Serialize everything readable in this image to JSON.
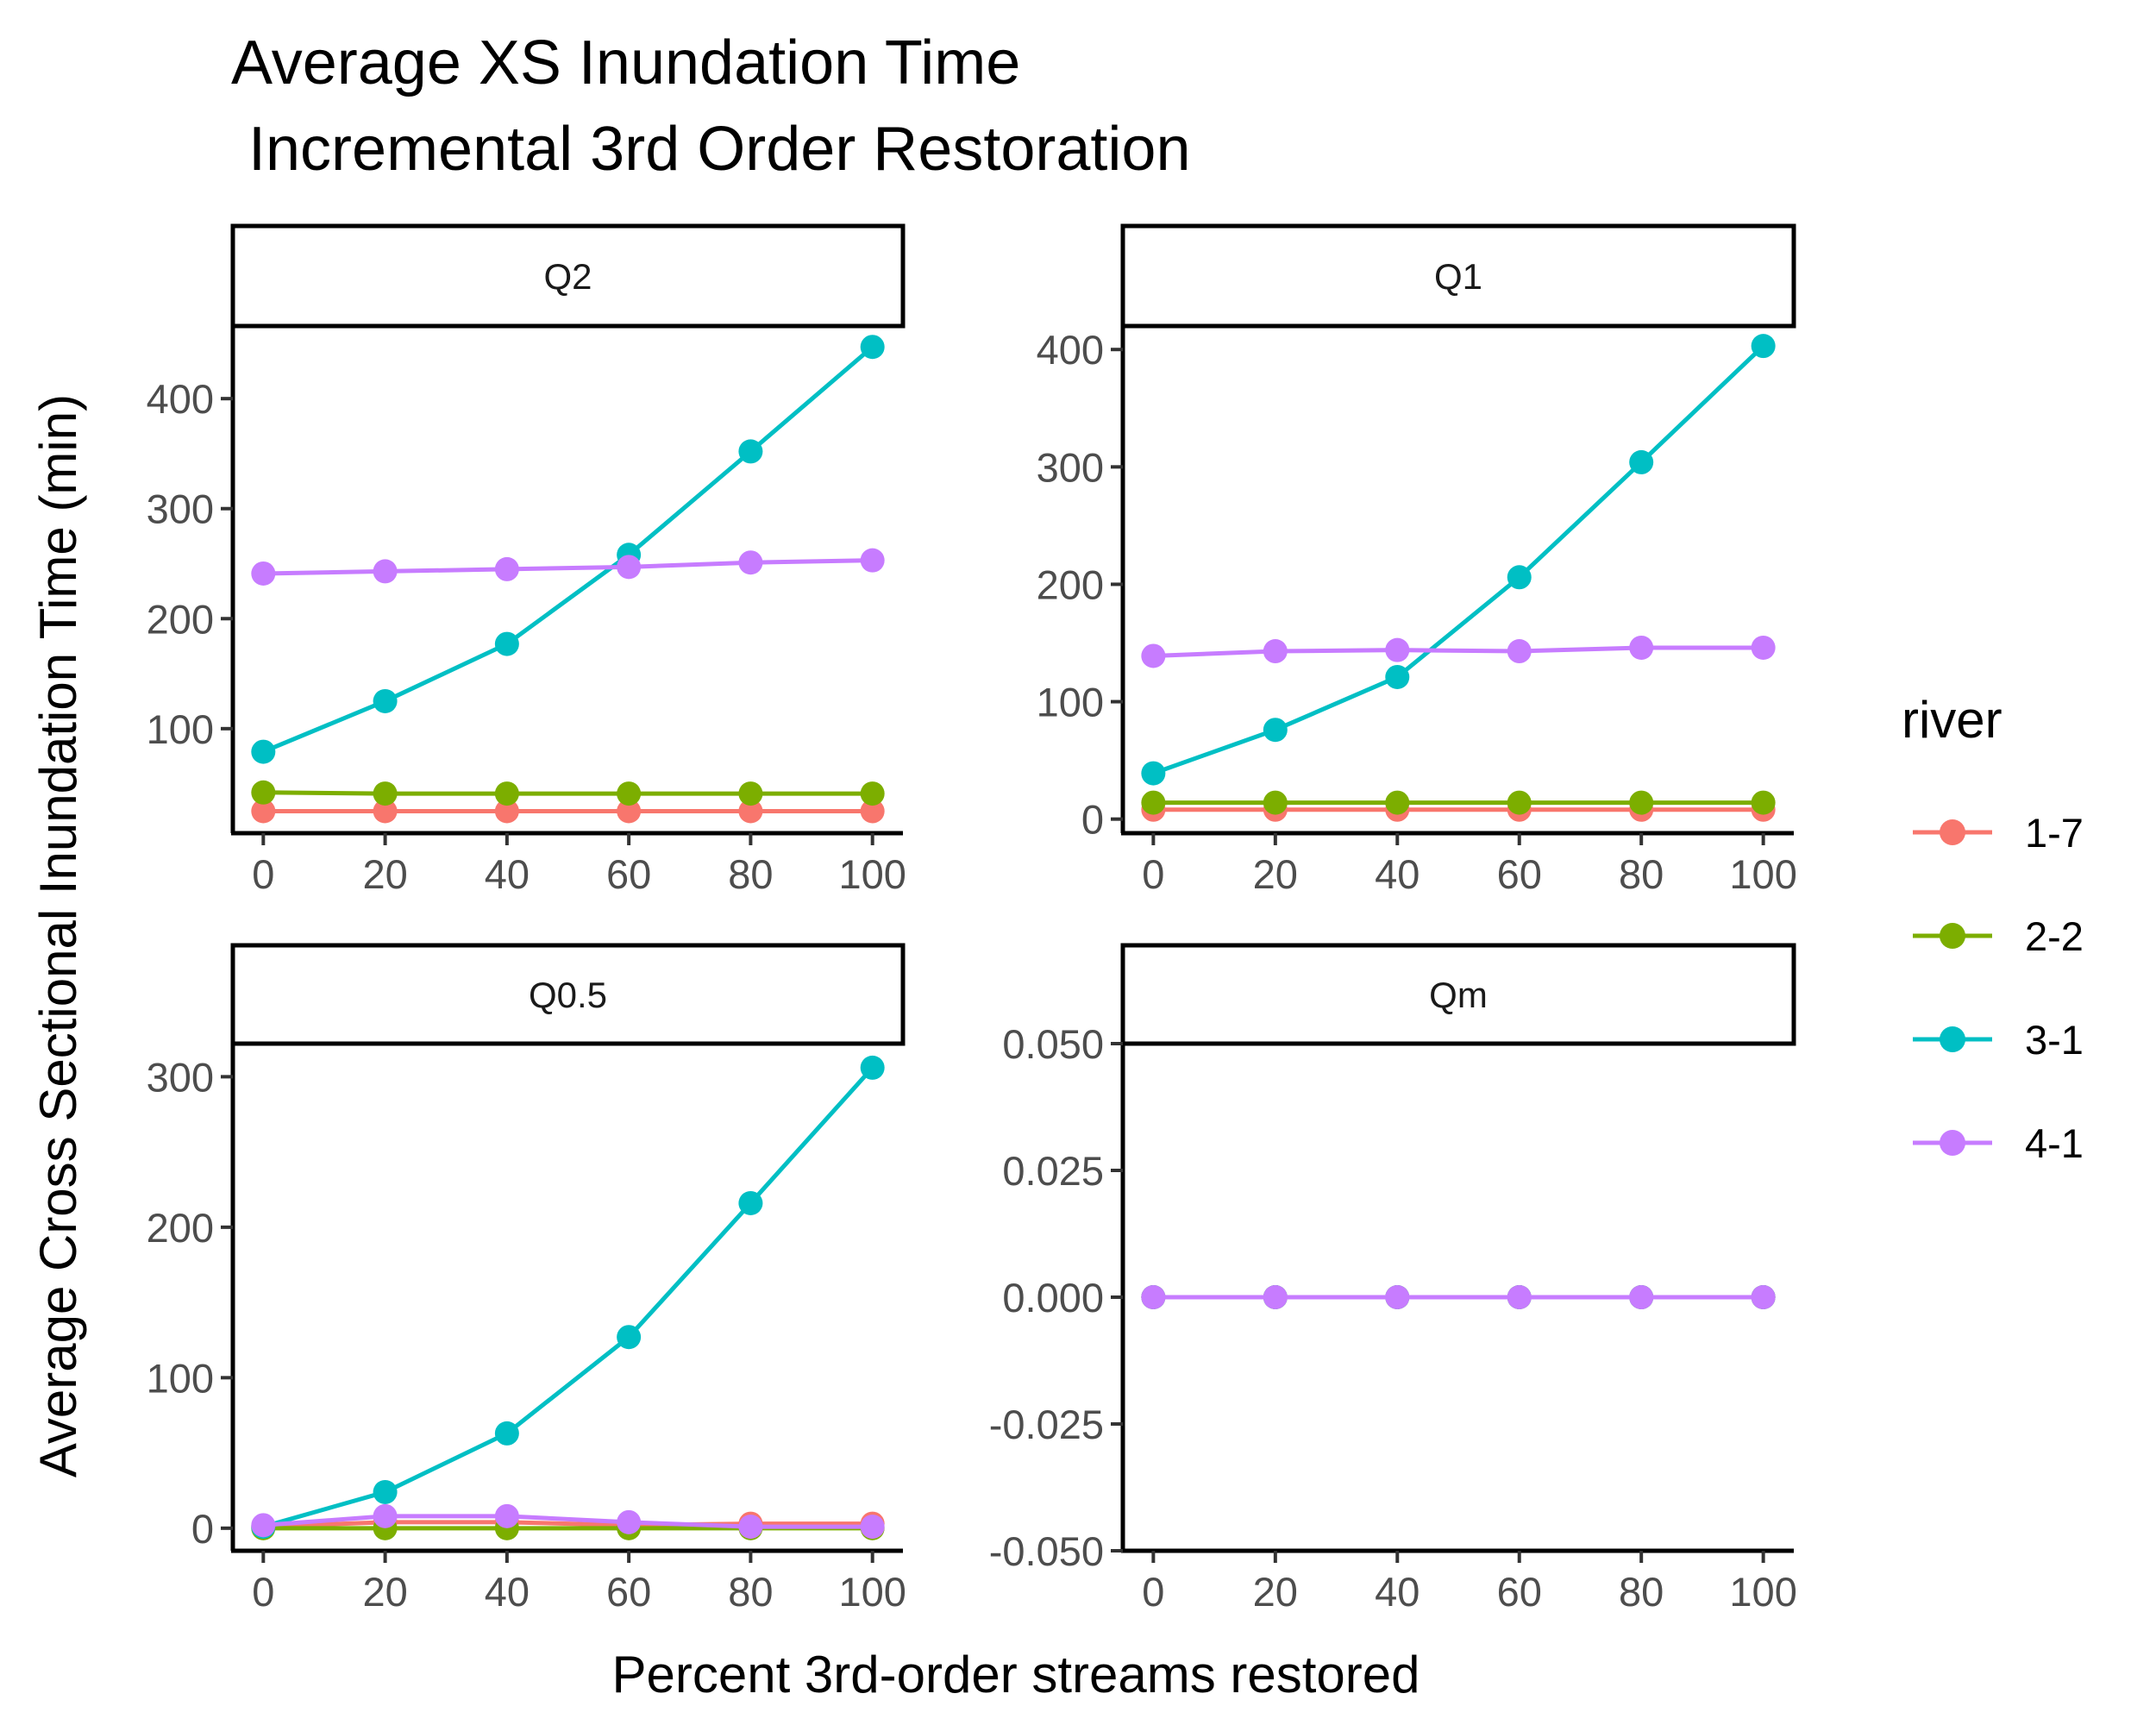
{
  "chart_data": {
    "type": "line",
    "title_line1": "Average XS Inundation Time",
    "title_line2": " Incremental 3rd Order Restoration",
    "xlabel": "Percent 3rd-order streams restored",
    "ylabel": "Average Cross Sectional Inundation Time (min)",
    "legend_title": "river",
    "legend_position": "right",
    "grid": false,
    "colors": {
      "1-7": "#F8766D",
      "2-2": "#7CAE00",
      "3-1": "#00BFC4",
      "4-1": "#C77CFF"
    },
    "x_ticks": [
      "0",
      "20",
      "40",
      "60",
      "80",
      "100"
    ],
    "x": [
      0,
      20,
      40,
      60,
      80,
      100
    ],
    "xlim": [
      -5,
      105
    ],
    "panels": [
      {
        "label": "Q2",
        "ylim": [
          5,
          466
        ],
        "y_ticks": [
          100,
          200,
          300,
          400
        ],
        "y_tick_labels": [
          "100",
          "200",
          "300",
          "400"
        ],
        "series": [
          {
            "name": "1-7",
            "values": [
              25,
              25,
              25,
              25,
              25,
              25
            ]
          },
          {
            "name": "2-2",
            "values": [
              42,
              41,
              41,
              41,
              41,
              41
            ]
          },
          {
            "name": "3-1",
            "values": [
              79,
              125,
              177,
              258,
              352,
              447
            ]
          },
          {
            "name": "4-1",
            "values": [
              241,
              243,
              245,
              247,
              251,
              253
            ]
          }
        ]
      },
      {
        "label": "Q1",
        "ylim": [
          -12,
          420
        ],
        "y_ticks": [
          0,
          100,
          200,
          300,
          400
        ],
        "y_tick_labels": [
          "0",
          "100",
          "200",
          "300",
          "400"
        ],
        "series": [
          {
            "name": "1-7",
            "values": [
              8,
              8,
              8,
              8,
              8,
              8
            ]
          },
          {
            "name": "2-2",
            "values": [
              14,
              14,
              14,
              14,
              14,
              14
            ]
          },
          {
            "name": "3-1",
            "values": [
              39,
              76,
              121,
              206,
              304,
              403
            ]
          },
          {
            "name": "4-1",
            "values": [
              139,
              143,
              144,
              143,
              146,
              146
            ]
          }
        ]
      },
      {
        "label": "Q0.5",
        "ylim": [
          -15,
          322
        ],
        "y_ticks": [
          0,
          100,
          200,
          300
        ],
        "y_tick_labels": [
          "0",
          "100",
          "200",
          "300"
        ],
        "series": [
          {
            "name": "1-7",
            "values": [
              1,
              4,
              4,
              2,
              3,
              3
            ]
          },
          {
            "name": "2-2",
            "values": [
              0,
              0,
              0,
              0,
              0,
              0
            ]
          },
          {
            "name": "3-1",
            "values": [
              1,
              24,
              63,
              127,
              216,
              306
            ]
          },
          {
            "name": "4-1",
            "values": [
              2,
              8,
              8,
              4,
              1,
              1
            ]
          }
        ]
      },
      {
        "label": "Qm",
        "ylim": [
          -0.05,
          0.05
        ],
        "y_ticks": [
          -0.05,
          -0.025,
          0,
          0.025,
          0.05
        ],
        "y_tick_labels": [
          "-0.050",
          "-0.025",
          "0.000",
          "0.025",
          "0.050"
        ],
        "series": [
          {
            "name": "1-7",
            "values": [
              0,
              0,
              0,
              0,
              0,
              0
            ]
          },
          {
            "name": "2-2",
            "values": [
              0,
              0,
              0,
              0,
              0,
              0
            ]
          },
          {
            "name": "3-1",
            "values": [
              0,
              0,
              0,
              0,
              0,
              0
            ]
          },
          {
            "name": "4-1",
            "values": [
              0,
              0,
              0,
              0,
              0,
              0
            ]
          }
        ]
      }
    ]
  }
}
